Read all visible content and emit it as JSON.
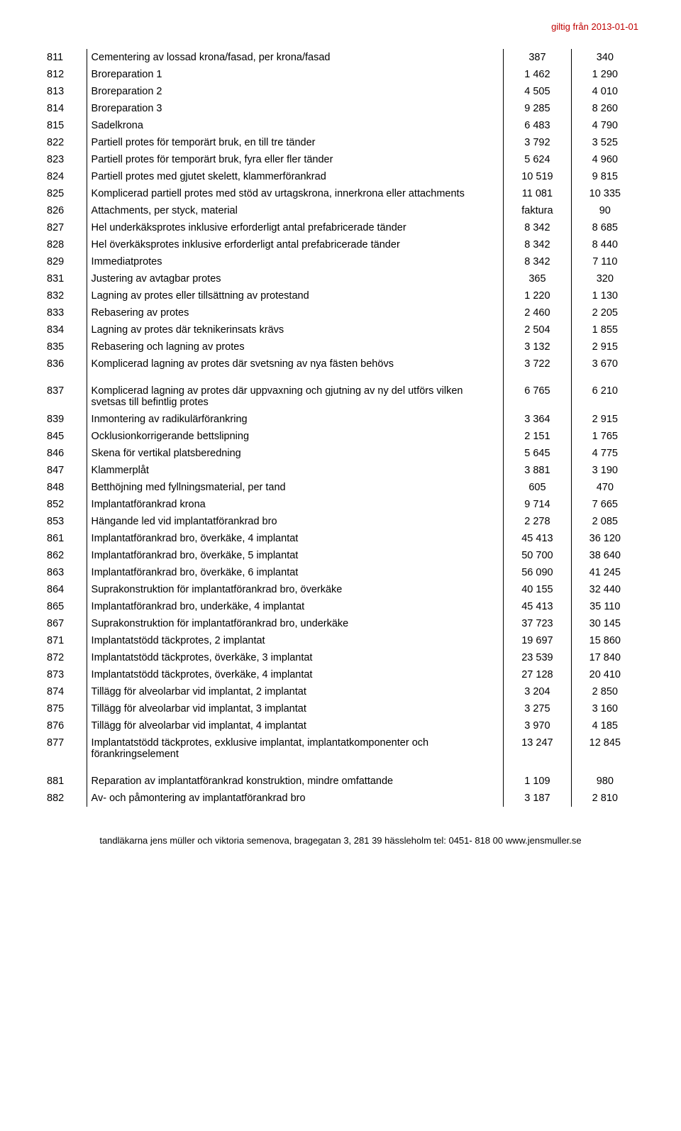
{
  "header": {
    "validity": "giltig från 2013-01-01"
  },
  "table": {
    "columns": [
      {
        "key": "code",
        "class": "col-code"
      },
      {
        "key": "desc",
        "class": "col-desc"
      },
      {
        "key": "p1",
        "class": "col-p1"
      },
      {
        "key": "p2",
        "class": "col-p2"
      }
    ],
    "rows": [
      {
        "code": "811",
        "desc": "Cementering av lossad krona/fasad, per krona/fasad",
        "p1": "387",
        "p2": "340"
      },
      {
        "code": "812",
        "desc": "Broreparation 1",
        "p1": "1 462",
        "p2": "1 290"
      },
      {
        "code": "813",
        "desc": "Broreparation 2",
        "p1": "4 505",
        "p2": "4 010"
      },
      {
        "code": "814",
        "desc": "Broreparation 3",
        "p1": "9 285",
        "p2": "8 260"
      },
      {
        "code": "815",
        "desc": "Sadelkrona",
        "p1": "6 483",
        "p2": "4 790"
      },
      {
        "code": "822",
        "desc": "Partiell protes för temporärt bruk, en till tre tänder",
        "p1": "3 792",
        "p2": "3 525"
      },
      {
        "code": "823",
        "desc": "Partiell protes för temporärt bruk, fyra eller fler tänder",
        "p1": "5 624",
        "p2": "4 960"
      },
      {
        "code": "824",
        "desc": "Partiell protes med gjutet skelett, klammerförankrad",
        "p1": "10 519",
        "p2": "9 815"
      },
      {
        "code": "825",
        "desc": "Komplicerad partiell protes med stöd av urtagskrona, innerkrona eller attachments",
        "p1": "11 081",
        "p2": "10 335"
      },
      {
        "code": "826",
        "desc": "Attachments, per styck, material",
        "p1": "faktura",
        "p2": "90"
      },
      {
        "code": "827",
        "desc": "Hel underkäksprotes inklusive erforderligt antal prefabricerade tänder",
        "p1": "8 342",
        "p2": "8 685"
      },
      {
        "code": "828",
        "desc": "Hel överkäksprotes inklusive erforderligt antal prefabricerade tänder",
        "p1": "8 342",
        "p2": "8 440"
      },
      {
        "code": "829",
        "desc": "Immediatprotes",
        "p1": "8 342",
        "p2": "7 110"
      },
      {
        "code": "831",
        "desc": "Justering av avtagbar protes",
        "p1": "365",
        "p2": "320"
      },
      {
        "code": "832",
        "desc": "Lagning av protes eller tillsättning av protestand",
        "p1": "1 220",
        "p2": "1 130"
      },
      {
        "code": "833",
        "desc": "Rebasering av protes",
        "p1": "2 460",
        "p2": "2 205"
      },
      {
        "code": "834",
        "desc": "Lagning av protes där teknikerinsats krävs",
        "p1": "2 504",
        "p2": "1 855"
      },
      {
        "code": "835",
        "desc": "Rebasering och lagning av protes",
        "p1": "3 132",
        "p2": "2 915"
      },
      {
        "code": "836",
        "desc": "Komplicerad lagning av protes där svetsning av nya fästen behövs",
        "p1": "3 722",
        "p2": "3 670"
      },
      {
        "spacer": true
      },
      {
        "code": "837",
        "desc": "Komplicerad lagning av protes där uppvaxning och gjutning av ny del utförs vilken svetsas till befintlig protes",
        "p1": "6 765",
        "p2": "6 210"
      },
      {
        "code": "839",
        "desc": "Inmontering av radikulärförankring",
        "p1": "3 364",
        "p2": "2 915"
      },
      {
        "code": "845",
        "desc": "Ocklusionkorrigerande bettslipning",
        "p1": "2 151",
        "p2": "1 765"
      },
      {
        "code": "846",
        "desc": "Skena för vertikal platsberedning",
        "p1": "5 645",
        "p2": "4 775"
      },
      {
        "code": "847",
        "desc": "Klammerplåt",
        "p1": "3 881",
        "p2": "3 190"
      },
      {
        "code": "848",
        "desc": "Betthöjning med fyllningsmaterial, per tand",
        "p1": "605",
        "p2": "470"
      },
      {
        "code": "852",
        "desc": "Implantatförankrad krona",
        "p1": "9 714",
        "p2": "7 665"
      },
      {
        "code": "853",
        "desc": "Hängande led vid implantatförankrad bro",
        "p1": "2 278",
        "p2": "2 085"
      },
      {
        "code": "861",
        "desc": "Implantatförankrad bro, överkäke, 4 implantat",
        "p1": "45 413",
        "p2": "36 120"
      },
      {
        "code": "862",
        "desc": "Implantatförankrad bro, överkäke, 5 implantat",
        "p1": "50 700",
        "p2": "38 640"
      },
      {
        "code": "863",
        "desc": "Implantatförankrad bro, överkäke, 6 implantat",
        "p1": "56 090",
        "p2": "41 245"
      },
      {
        "code": "864",
        "desc": "Suprakonstruktion för implantatförankrad bro, överkäke",
        "p1": "40 155",
        "p2": "32 440"
      },
      {
        "code": "865",
        "desc": "Implantatförankrad bro, underkäke, 4 implantat",
        "p1": "45 413",
        "p2": "35 110"
      },
      {
        "code": "867",
        "desc": "Suprakonstruktion för implantatförankrad bro, underkäke",
        "p1": "37 723",
        "p2": "30 145"
      },
      {
        "code": "871",
        "desc": "Implantatstödd täckprotes, 2 implantat",
        "p1": "19 697",
        "p2": "15 860"
      },
      {
        "code": "872",
        "desc": "Implantatstödd täckprotes, överkäke, 3 implantat",
        "p1": "23 539",
        "p2": "17 840"
      },
      {
        "code": "873",
        "desc": "Implantatstödd täckprotes, överkäke, 4 implantat",
        "p1": "27 128",
        "p2": "20 410"
      },
      {
        "code": "874",
        "desc": "Tillägg för alveolarbar vid implantat, 2 implantat",
        "p1": "3 204",
        "p2": "2 850"
      },
      {
        "code": "875",
        "desc": "Tillägg för alveolarbar vid implantat, 3 implantat",
        "p1": "3 275",
        "p2": "3 160"
      },
      {
        "code": "876",
        "desc": "Tillägg för alveolarbar vid implantat, 4 implantat",
        "p1": "3 970",
        "p2": "4 185"
      },
      {
        "code": "877",
        "desc": "Implantatstödd täckprotes, exklusive implantat, implantatkomponenter och förankringselement",
        "p1": "13 247",
        "p2": "12 845"
      },
      {
        "spacer": true
      },
      {
        "code": "881",
        "desc": "Reparation av implantatförankrad konstruktion, mindre omfattande",
        "p1": "1 109",
        "p2": "980"
      },
      {
        "code": "882",
        "desc": "Av- och påmontering av implantatförankrad bro",
        "p1": "3 187",
        "p2": "2 810"
      }
    ]
  },
  "footer": {
    "text": "tandläkarna jens müller och viktoria semenova, bragegatan 3, 281 39 hässleholm  tel: 0451- 818 00  www.jensmuller.se"
  }
}
